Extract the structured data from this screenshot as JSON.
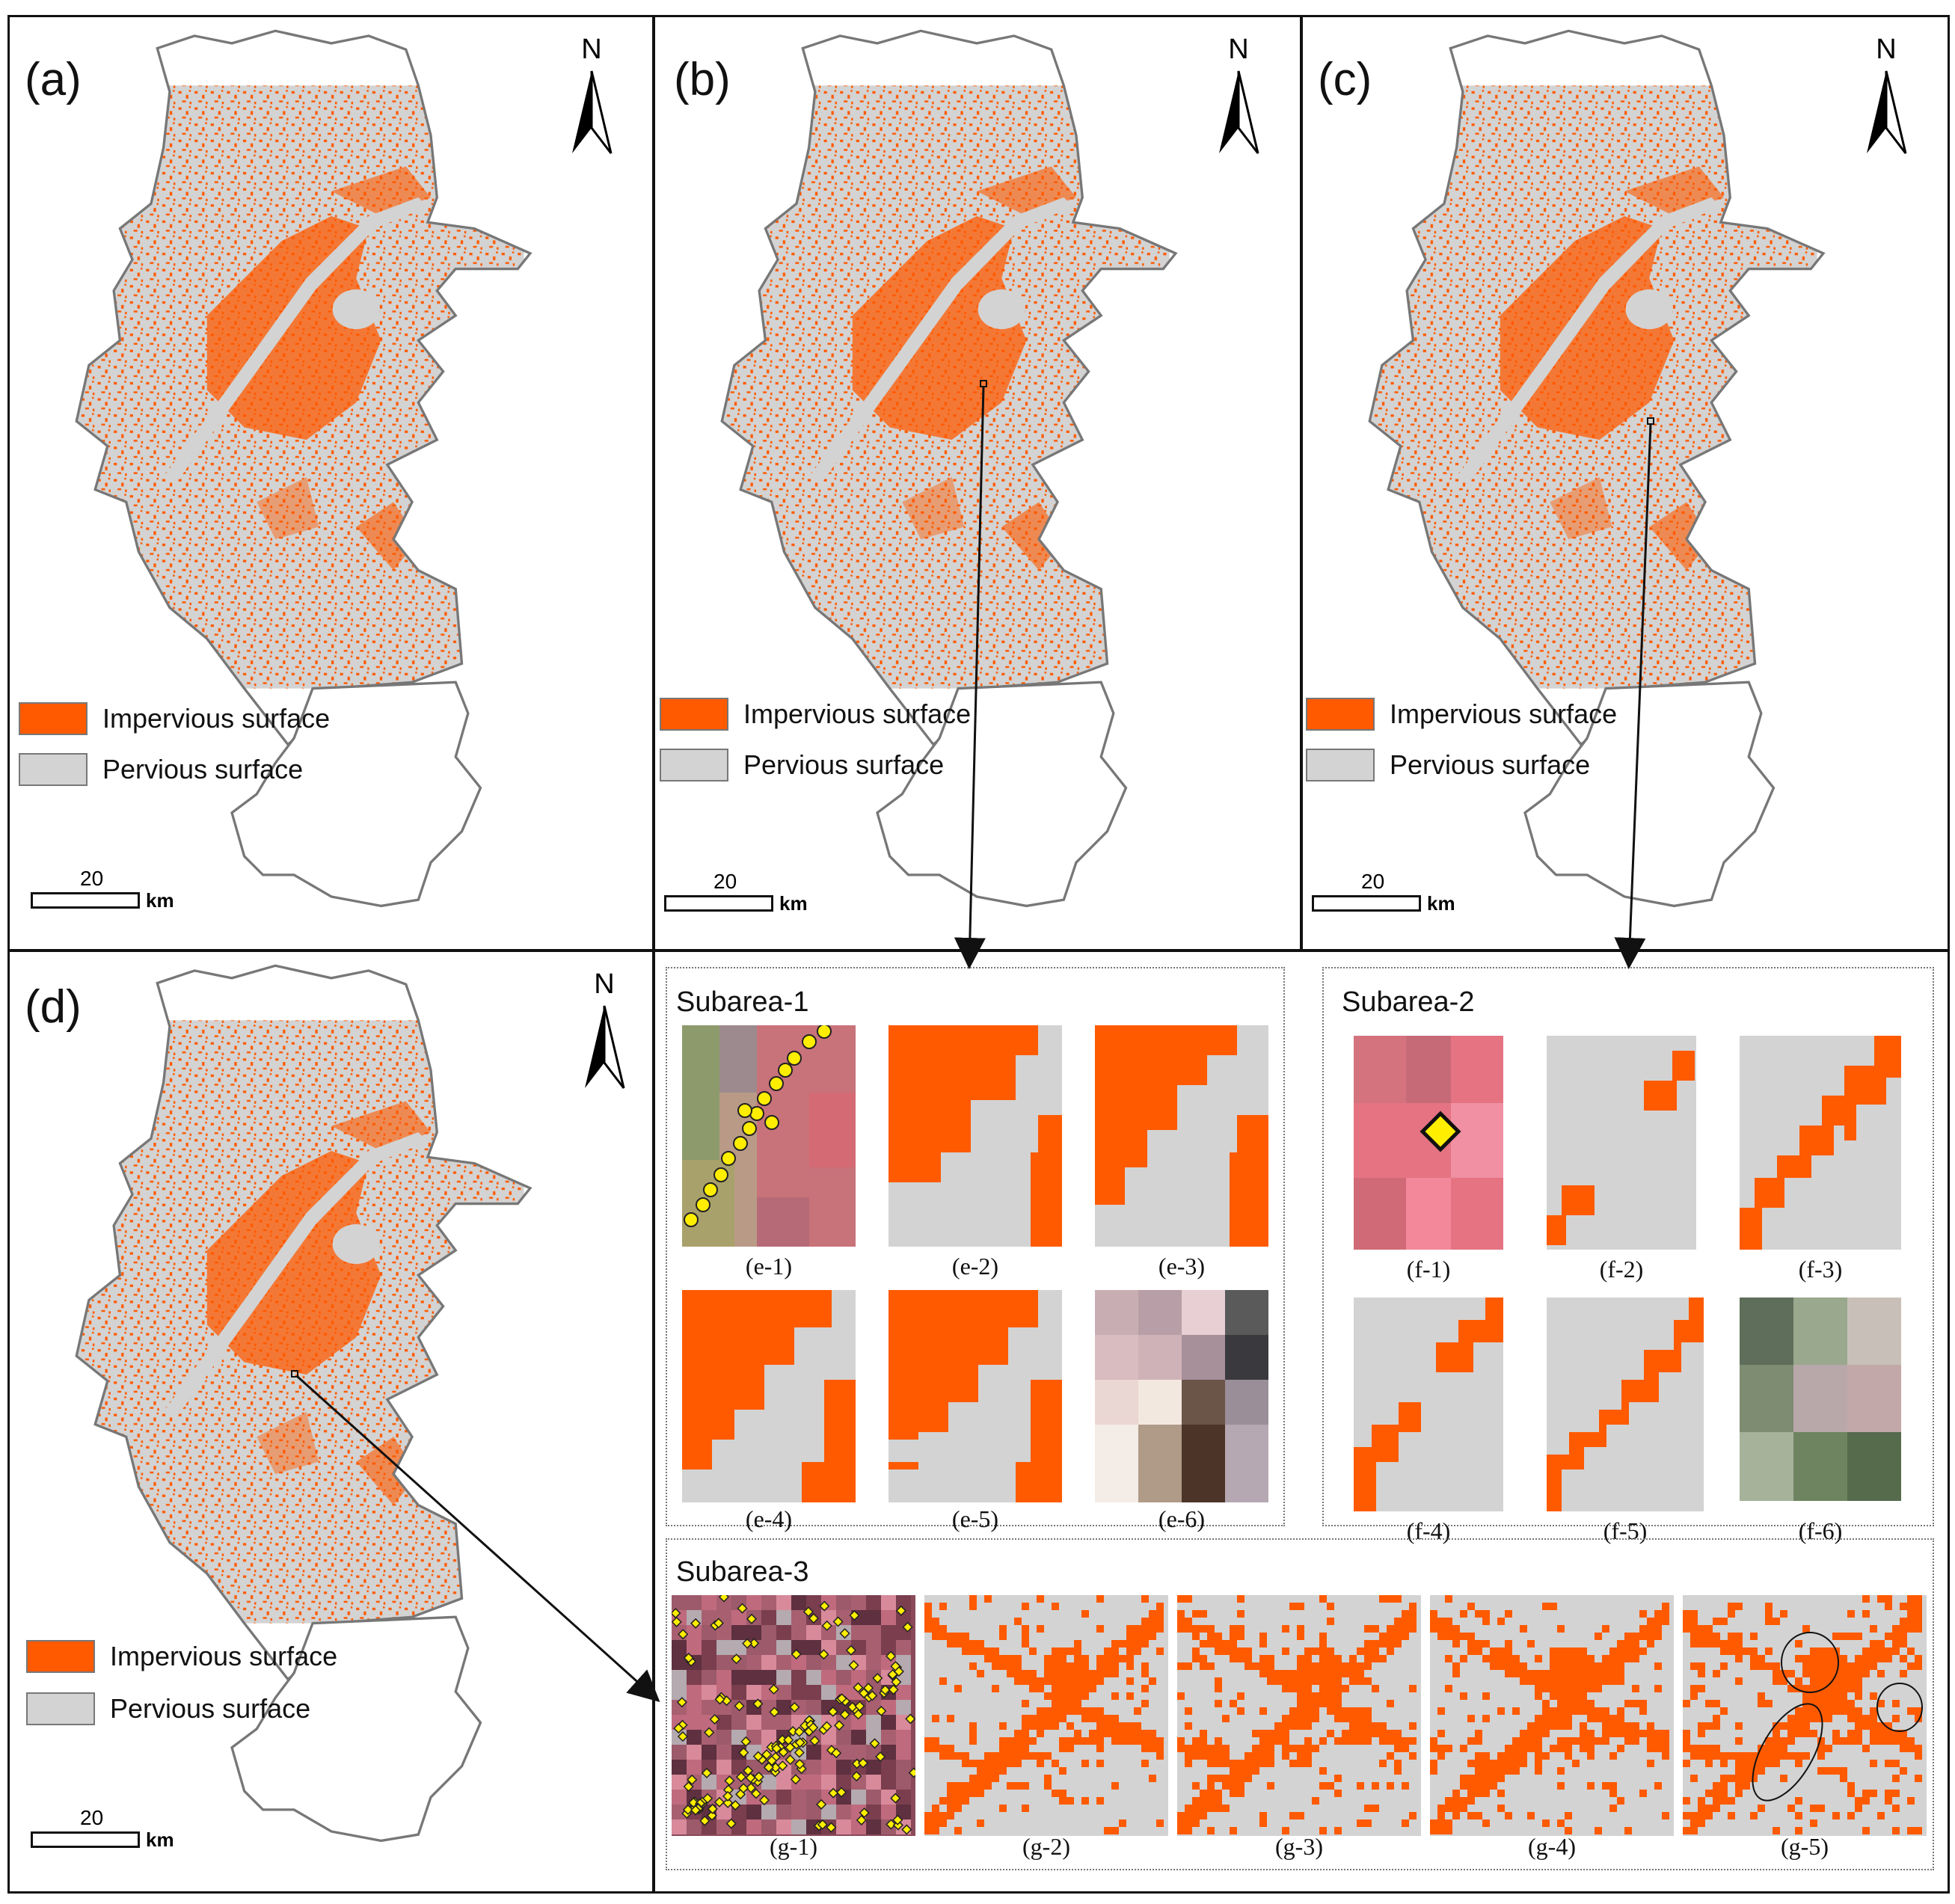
{
  "panels": [
    {
      "label": "(a)"
    },
    {
      "label": "(b)"
    },
    {
      "label": "(c)"
    },
    {
      "label": "(d)"
    }
  ],
  "north_label": "N",
  "legend": {
    "impervious": {
      "label": "Impervious surface",
      "color": "#ff5a00"
    },
    "pervious": {
      "label": "Pervious surface",
      "color": "#d3d3d3"
    }
  },
  "scale_bar": {
    "value": "20",
    "unit": "km"
  },
  "subareas": {
    "subarea1": {
      "title": "Subarea-1",
      "captions": [
        "(e-1)",
        "(e-2)",
        "(e-3)",
        "(e-4)",
        "(e-5)",
        "(e-6)"
      ]
    },
    "subarea2": {
      "title": "Subarea-2",
      "captions": [
        "(f-1)",
        "(f-2)",
        "(f-3)",
        "(f-4)",
        "(f-5)",
        "(f-6)"
      ]
    },
    "subarea3": {
      "title": "Subarea-3",
      "captions": [
        "(g-1)",
        "(g-2)",
        "(g-3)",
        "(g-4)",
        "(g-5)"
      ]
    }
  },
  "colors": {
    "impervious": "#ff5a00",
    "pervious": "#d3d3d3",
    "sample_point": "#ffee00",
    "boundary": "#777777"
  }
}
